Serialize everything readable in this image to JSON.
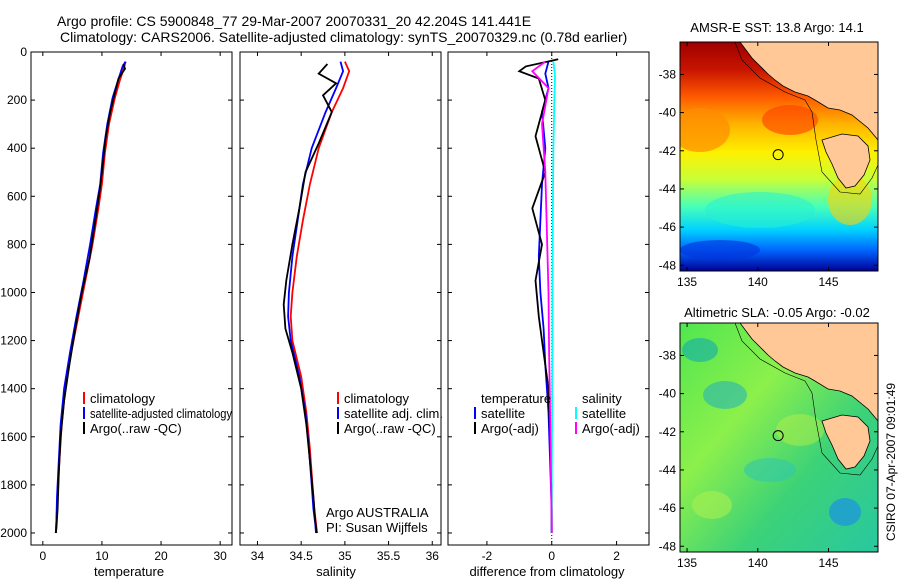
{
  "header": {
    "line1": "Argo profile: CS 5900848_77 29-Mar-2007 20070331_20 42.204S 141.441E",
    "line2": "Climatology: CARS2006. Satellite-adjusted climatology: synTS_20070329.nc (0.78d earlier)"
  },
  "side_stamp": "CSIRO 07-Apr-2007 09:01:49",
  "colors": {
    "red": "#ff0000",
    "blue": "#0000ff",
    "black": "#000000",
    "cyan": "#00ffff",
    "magenta": "#ff00ff",
    "land": "#ffc896"
  },
  "chart_data": [
    {
      "id": "temperature",
      "type": "line",
      "xlabel": "temperature",
      "xlim": [
        -2,
        32
      ],
      "ylim": [
        0,
        2050
      ],
      "xticks": [
        0,
        10,
        20,
        30
      ],
      "xtick_labels": [
        "0",
        "10",
        "20",
        "30"
      ],
      "yticks": [
        0,
        200,
        400,
        600,
        800,
        1000,
        1200,
        1400,
        1600,
        1800,
        2000
      ],
      "ytick_labels": [
        "0",
        "200",
        "400",
        "600",
        "800",
        "1000",
        "1200",
        "1400",
        "1600",
        "1800",
        "2000"
      ],
      "legend": [
        "climatology",
        "satellite-adjusted climatology",
        "Argo(..raw -QC)"
      ],
      "series": [
        {
          "name": "climatology",
          "color": "#ff0000",
          "x": [
            14.0,
            13.8,
            13.0,
            12.2,
            11.2,
            10.5,
            10.0,
            9.4,
            8.4,
            7.2,
            6.0,
            4.8,
            3.8,
            3.2,
            2.8,
            2.5,
            2.3,
            2.2
          ],
          "y": [
            40,
            60,
            120,
            190,
            300,
            420,
            550,
            650,
            800,
            950,
            1100,
            1250,
            1400,
            1550,
            1700,
            1850,
            1950,
            2000
          ]
        },
        {
          "name": "satellite-adjusted climatology",
          "color": "#0000ff",
          "x": [
            14.0,
            13.5,
            12.7,
            11.8,
            10.9,
            10.2,
            9.7,
            9.0,
            8.0,
            6.9,
            5.7,
            4.6,
            3.6,
            3.0,
            2.7,
            2.4,
            2.3,
            2.2
          ],
          "y": [
            40,
            60,
            120,
            190,
            300,
            420,
            550,
            650,
            800,
            950,
            1100,
            1250,
            1400,
            1550,
            1700,
            1850,
            1950,
            2000
          ]
        },
        {
          "name": "Argo(..raw -QC)",
          "color": "#000000",
          "x": [
            13.6,
            13.9,
            12.8,
            12.2,
            11.4,
            10.6,
            10.1,
            9.6,
            8.9,
            7.9,
            6.6,
            5.5,
            4.5,
            3.6,
            3.0,
            2.7,
            2.5,
            2.3,
            2.2
          ],
          "y": [
            50,
            70,
            110,
            170,
            250,
            360,
            480,
            580,
            700,
            860,
            1000,
            1150,
            1300,
            1450,
            1600,
            1750,
            1900,
            1980,
            2000
          ]
        }
      ]
    },
    {
      "id": "salinity",
      "type": "line",
      "xlabel": "salinity",
      "xlim": [
        33.8,
        36.1
      ],
      "ylim": [
        0,
        2050
      ],
      "xticks": [
        34,
        34.5,
        35,
        35.5,
        36
      ],
      "xtick_labels": [
        "34",
        "34.5",
        "35",
        "35.5",
        "36"
      ],
      "legend": [
        "climatology",
        "satellite adj. clim.",
        "Argo(..raw -QC)"
      ],
      "annotation": [
        "Argo AUSTRALIA",
        "PI: Susan Wijffels"
      ],
      "series": [
        {
          "name": "climatology",
          "color": "#ff0000",
          "x": [
            35.0,
            35.05,
            34.98,
            34.85,
            34.7,
            34.6,
            34.52,
            34.45,
            34.4,
            34.38,
            34.4,
            34.5,
            34.56,
            34.6,
            34.63,
            34.65,
            34.67,
            34.68
          ],
          "y": [
            40,
            80,
            150,
            250,
            400,
            550,
            700,
            850,
            1000,
            1100,
            1200,
            1350,
            1500,
            1650,
            1800,
            1900,
            1960,
            2000
          ]
        },
        {
          "name": "satellite adj. clim.",
          "color": "#0000ff",
          "x": [
            34.95,
            34.98,
            34.9,
            34.78,
            34.62,
            34.52,
            34.46,
            34.4,
            34.36,
            34.35,
            34.38,
            34.48,
            34.55,
            34.59,
            34.62,
            34.64,
            34.66,
            34.67
          ],
          "y": [
            40,
            80,
            150,
            250,
            400,
            550,
            700,
            850,
            1000,
            1100,
            1200,
            1350,
            1500,
            1650,
            1800,
            1900,
            1960,
            2000
          ]
        },
        {
          "name": "Argo(..raw -QC)",
          "color": "#000000",
          "x": [
            34.8,
            34.7,
            34.9,
            34.75,
            34.85,
            34.7,
            34.55,
            34.48,
            34.4,
            34.33,
            34.3,
            34.32,
            34.4,
            34.5,
            34.56,
            34.6,
            34.64,
            34.66,
            34.68
          ],
          "y": [
            50,
            90,
            130,
            180,
            250,
            380,
            500,
            650,
            800,
            950,
            1050,
            1150,
            1250,
            1400,
            1550,
            1700,
            1850,
            1950,
            2000
          ]
        }
      ]
    },
    {
      "id": "difference",
      "type": "line",
      "xlabel": "difference from climatology",
      "xlim": [
        -3.2,
        3.0
      ],
      "ylim": [
        0,
        2050
      ],
      "xticks": [
        -2,
        0,
        2
      ],
      "xtick_labels": [
        "-2",
        "0",
        "2"
      ],
      "legend_temperature": {
        "heading": "temperature",
        "items": [
          "satellite",
          "Argo(-adj)"
        ]
      },
      "legend_salinity": {
        "heading": "salinity",
        "items": [
          "satellite",
          "Argo(-adj)"
        ]
      },
      "series": [
        {
          "name": "temperature satellite",
          "color": "#0000ff",
          "x": [
            -0.1,
            -0.2,
            -0.1,
            -0.3,
            -0.2,
            -0.3,
            -0.35,
            -0.4,
            -0.35,
            -0.25,
            -0.2,
            -0.1,
            -0.05,
            0.0,
            0.0
          ],
          "y": [
            40,
            90,
            150,
            250,
            400,
            550,
            700,
            850,
            1000,
            1150,
            1300,
            1500,
            1700,
            1900,
            2000
          ]
        },
        {
          "name": "temperature Argo(-adj)",
          "color": "#000000",
          "x": [
            0.2,
            -0.8,
            -1.0,
            -0.4,
            -0.2,
            -0.5,
            -0.2,
            -0.6,
            -0.3,
            -0.5,
            -0.4,
            -0.3,
            -0.1,
            -0.05,
            0.0,
            0.0
          ],
          "y": [
            30,
            60,
            80,
            110,
            200,
            350,
            500,
            650,
            800,
            950,
            1100,
            1200,
            1400,
            1600,
            1800,
            2000
          ]
        },
        {
          "name": "salinity satellite",
          "color": "#00ffff",
          "x": [
            0.05,
            0.1,
            0.08,
            0.05,
            0.04,
            0.03,
            0.02,
            0.02,
            0.01,
            0.0,
            0.0
          ],
          "y": [
            40,
            100,
            200,
            400,
            600,
            800,
            1000,
            1200,
            1500,
            1800,
            2000
          ]
        },
        {
          "name": "salinity Argo(-adj)",
          "color": "#ff00ff",
          "x": [
            -0.2,
            -0.6,
            -0.1,
            -0.3,
            -0.2,
            -0.15,
            -0.1,
            -0.08,
            -0.05,
            -0.02,
            0.0
          ],
          "y": [
            40,
            80,
            150,
            300,
            500,
            750,
            1000,
            1250,
            1500,
            1800,
            2000
          ]
        }
      ]
    },
    {
      "id": "sst_map",
      "type": "heatmap",
      "title": "AMSR-E SST: 13.8 Argo: 14.1",
      "xlim": [
        134.5,
        148.5
      ],
      "ylim": [
        -48.3,
        -36.3
      ],
      "xticks": [
        135,
        140,
        145
      ],
      "xtick_labels": [
        "135",
        "140",
        "145"
      ],
      "yticks": [
        -38,
        -40,
        -42,
        -44,
        -46,
        -48
      ],
      "ytick_labels": [
        "-38",
        "-40",
        "-42",
        "-44",
        "-46",
        "-48"
      ],
      "marker": {
        "lon": 141.441,
        "lat": -42.204
      }
    },
    {
      "id": "sla_map",
      "type": "heatmap",
      "title": "Altimetric SLA: -0.05 Argo: -0.02",
      "xlim": [
        134.5,
        148.5
      ],
      "ylim": [
        -48.3,
        -36.3
      ],
      "xticks": [
        135,
        140,
        145
      ],
      "xtick_labels": [
        "135",
        "140",
        "145"
      ],
      "yticks": [
        -38,
        -40,
        -42,
        -44,
        -46,
        -48
      ],
      "ytick_labels": [
        "-38",
        "-40",
        "-42",
        "-44",
        "-46",
        "-48"
      ],
      "marker": {
        "lon": 141.441,
        "lat": -42.204
      }
    }
  ]
}
